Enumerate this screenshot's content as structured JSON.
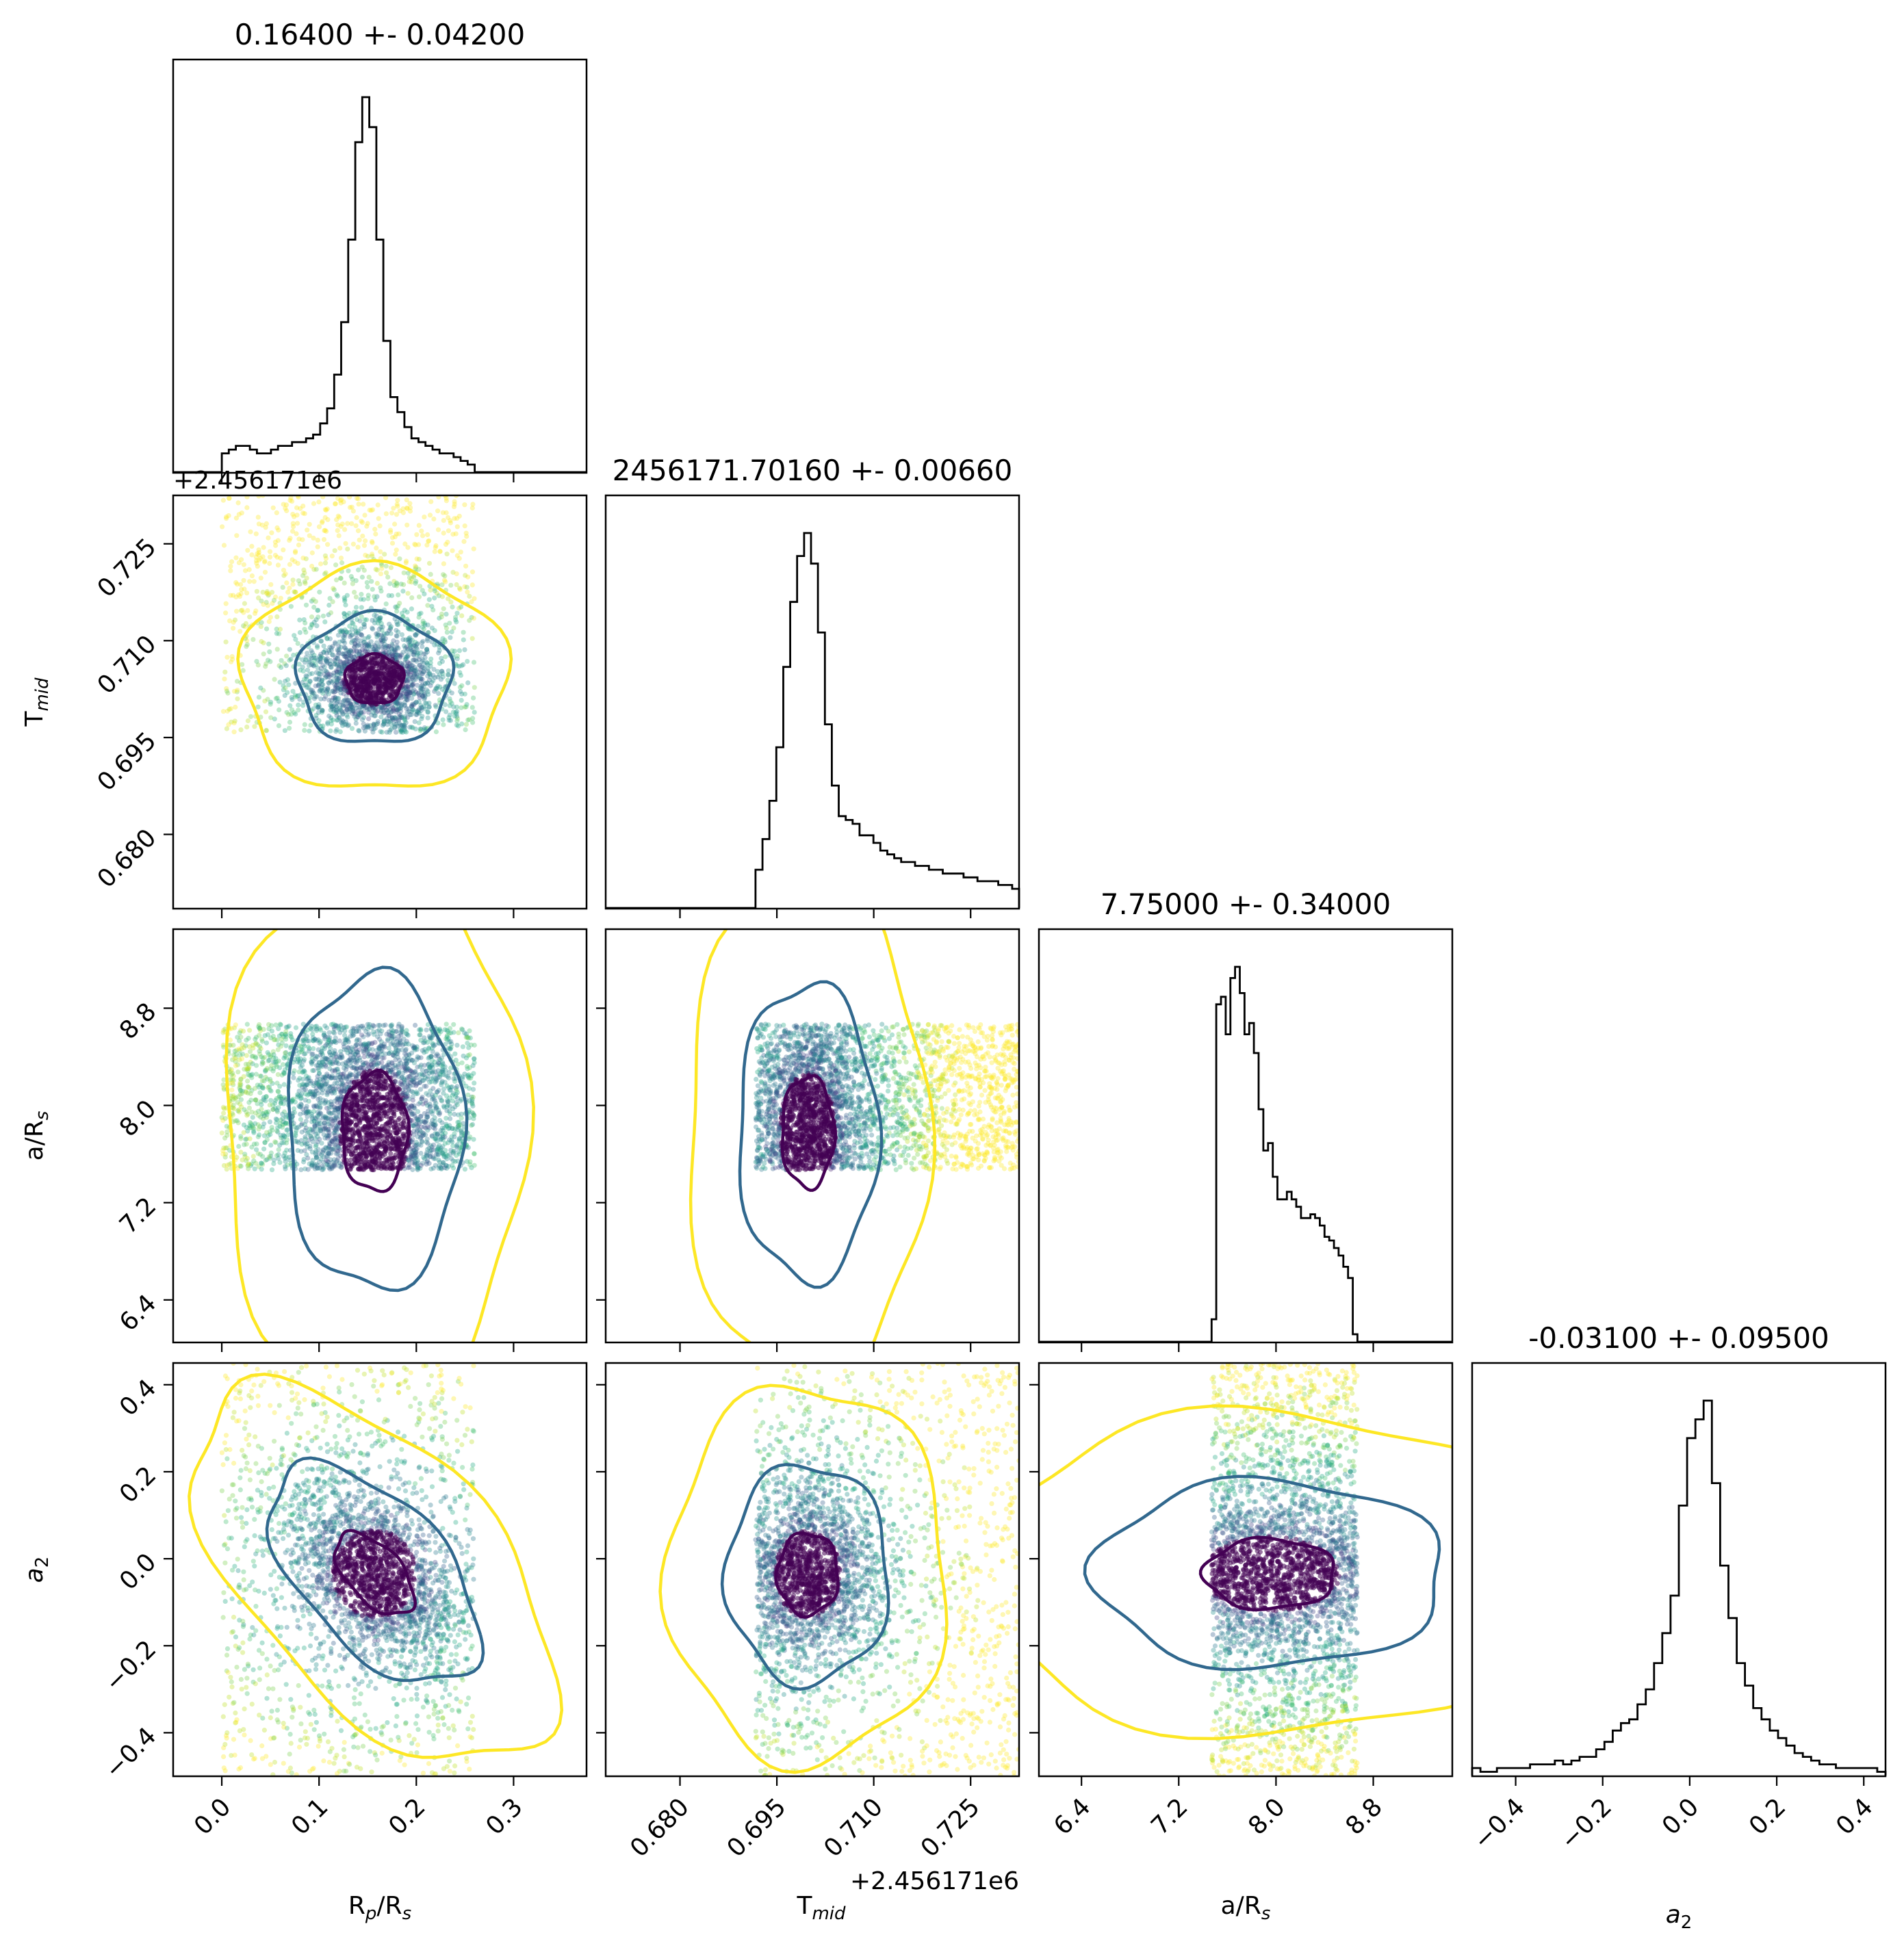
{
  "chart_data": {
    "type": "corner",
    "parameters": [
      {
        "key": "rp",
        "label_main": "R",
        "label_sub": "p",
        "label_tail": "/R",
        "label_tail_sub": "s",
        "range": [
          -0.05,
          0.375
        ],
        "ticks": [
          "0.0",
          "0.1",
          "0.2",
          "0.3"
        ],
        "tick_values": [
          0.0,
          0.1,
          0.2,
          0.3
        ]
      },
      {
        "key": "tmid",
        "label_main": "T",
        "label_sub": "mid",
        "label_tail": "",
        "label_tail_sub": "",
        "range": [
          0.6685,
          0.7325
        ],
        "ticks": [
          "0.680",
          "0.695",
          "0.710",
          "0.725"
        ],
        "tick_values": [
          0.68,
          0.695,
          0.71,
          0.725
        ],
        "offset_text": "+2.456171e6"
      },
      {
        "key": "ars",
        "label_main": "a/R",
        "label_sub": "s",
        "label_tail": "",
        "label_tail_sub": "",
        "range": [
          6.05,
          9.45
        ],
        "ticks": [
          "6.4",
          "7.2",
          "8.0",
          "8.8"
        ],
        "tick_values": [
          6.4,
          7.2,
          8.0,
          8.8
        ]
      },
      {
        "key": "a2",
        "label_main": "a",
        "label_sub": "2",
        "label_tail": "",
        "label_tail_sub": "",
        "italic": true,
        "range": [
          -0.5,
          0.45
        ],
        "ticks": [
          "−0.4",
          "−0.2",
          "0.0",
          "0.2",
          "0.4"
        ],
        "tick_values": [
          -0.4,
          -0.2,
          0.0,
          0.2,
          0.4
        ]
      }
    ],
    "titles": [
      "0.16400 +- 0.04200",
      "2456171.70160 +- 0.00660",
      "7.75000 +- 0.34000",
      "-0.03100 +- 0.09500"
    ],
    "offset_text_left": "+2.456171e6",
    "histograms": [
      {
        "bins_start": 0.0,
        "bins_end": 0.26,
        "counts": [
          5,
          6,
          7,
          7,
          6,
          5,
          5,
          6,
          7,
          7,
          8,
          8,
          9,
          10,
          13,
          17,
          26,
          40,
          62,
          88,
          100,
          92,
          62,
          35,
          20,
          16,
          12,
          9,
          8,
          7,
          6,
          5,
          5,
          4,
          3,
          2
        ]
      },
      {
        "bins_start": 0.6917,
        "bins_end": 0.7325,
        "counts": [
          10,
          18,
          28,
          42,
          63,
          80,
          92,
          98,
          90,
          72,
          48,
          32,
          24,
          23,
          22,
          19,
          19,
          17,
          15,
          14,
          13,
          12,
          12,
          11,
          11,
          10,
          10,
          9,
          9,
          9,
          8,
          8,
          7,
          7,
          7,
          6,
          6,
          5
        ]
      },
      {
        "bins_start": 7.47,
        "bins_end": 8.67,
        "counts": [
          6,
          90,
          92,
          82,
          97,
          100,
          93,
          82,
          85,
          77,
          62,
          51,
          53,
          44,
          38,
          38,
          40,
          38,
          36,
          33,
          33,
          34,
          33,
          31,
          28,
          27,
          25,
          23,
          20,
          17,
          2
        ]
      },
      {
        "bins_start": -0.5,
        "bins_end": 0.45,
        "counts": [
          2,
          1,
          1,
          2,
          2,
          2,
          2,
          3,
          3,
          3,
          4,
          3,
          4,
          5,
          5,
          7,
          9,
          12,
          14,
          15,
          19,
          23,
          30,
          38,
          48,
          72,
          90,
          95,
          100,
          78,
          56,
          42,
          30,
          24,
          18,
          15,
          12,
          10,
          8,
          6,
          5,
          4,
          3,
          3,
          2,
          2,
          2,
          2,
          2,
          1
        ]
      }
    ],
    "panels": [
      {
        "row": 1,
        "col": 0,
        "center": [
          0.157,
          0.704
        ],
        "sd": [
          0.022,
          0.0028
        ],
        "corr": 0.0,
        "range_x": [
          0.0,
          0.26
        ],
        "range_y": [
          0.6958,
          0.7325
        ],
        "n": 2600
      },
      {
        "row": 2,
        "col": 0,
        "center": [
          0.157,
          7.78
        ],
        "sd": [
          0.025,
          0.36
        ],
        "corr": 0.0,
        "range_x": [
          0.0,
          0.26
        ],
        "range_y": [
          7.47,
          8.67
        ],
        "n": 3200
      },
      {
        "row": 2,
        "col": 1,
        "center": [
          0.6998,
          7.78
        ],
        "sd": [
          0.003,
          0.34
        ],
        "corr": 0.0,
        "range_x": [
          0.6917,
          0.7325
        ],
        "range_y": [
          7.47,
          8.67
        ],
        "n": 3200
      },
      {
        "row": 3,
        "col": 0,
        "center": [
          0.157,
          -0.035
        ],
        "sd": [
          0.03,
          0.07
        ],
        "corr": -0.55,
        "range_x": [
          0.0,
          0.26
        ],
        "range_y": [
          -0.5,
          0.45
        ],
        "n": 3000
      },
      {
        "row": 3,
        "col": 1,
        "center": [
          0.6998,
          -0.035
        ],
        "sd": [
          0.0035,
          0.07
        ],
        "corr": 0.0,
        "range_x": [
          0.6917,
          0.7325
        ],
        "range_y": [
          -0.5,
          0.45
        ],
        "n": 3000
      },
      {
        "row": 3,
        "col": 2,
        "center": [
          7.95,
          -0.035
        ],
        "sd": [
          0.4,
          0.06
        ],
        "corr": 0.0,
        "range_x": [
          7.47,
          8.67
        ],
        "range_y": [
          -0.5,
          0.45
        ],
        "n": 3200
      }
    ],
    "colors": {
      "inner": "#440154",
      "mid": "#31688e",
      "outer": "#fde725",
      "point_palette": [
        "#440154",
        "#482475",
        "#414487",
        "#355f8d",
        "#2a788e",
        "#21908d",
        "#22a884",
        "#44bf70",
        "#7ad151",
        "#bddf26",
        "#fde725"
      ]
    },
    "grid": false
  }
}
